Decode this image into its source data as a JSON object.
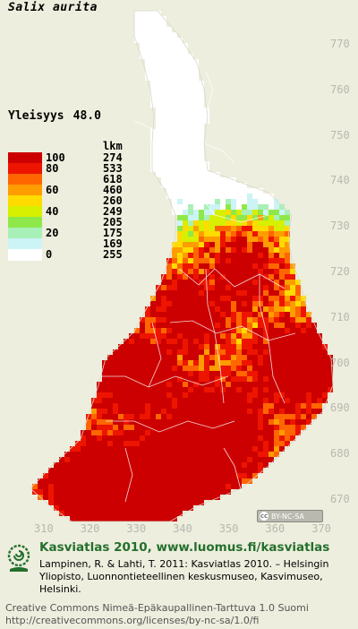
{
  "map": {
    "species": "Salix aurita",
    "frequency_label": "Yleisyys",
    "frequency_value": "48.0",
    "legend": {
      "count_header": "lkm",
      "classes": [
        {
          "value": "100",
          "count": "274",
          "color": "#cc0000"
        },
        {
          "value": "80",
          "count": "533",
          "color": "#ee1500"
        },
        {
          "value": "",
          "count": "618",
          "color": "#ff6600"
        },
        {
          "value": "60",
          "count": "460",
          "color": "#ff9c00"
        },
        {
          "value": "",
          "count": "260",
          "color": "#ffdb00"
        },
        {
          "value": "40",
          "count": "249",
          "color": "#d6f000"
        },
        {
          "value": "",
          "count": "205",
          "color": "#8ee84a"
        },
        {
          "value": "20",
          "count": "175",
          "color": "#a8f0b8"
        },
        {
          "value": "",
          "count": "169",
          "color": "#ccf4f6"
        },
        {
          "value": "0",
          "count": "255",
          "color": "#ffffff"
        }
      ]
    },
    "northing_ticks": [
      "770",
      "760",
      "750",
      "740",
      "730",
      "720",
      "710",
      "700",
      "690",
      "680",
      "670"
    ],
    "easting_ticks": [
      "310",
      "320",
      "330",
      "340",
      "350",
      "360",
      "370"
    ],
    "license_badge": "BY-NC-SA"
  },
  "footer": {
    "title": "Kasviatlas 2010, www.luomus.fi/kasviatlas",
    "citation": "Lampinen, R. & Lahti, T. 2011: Kasviatlas 2010. – Helsingin Yliopisto, Luonnontieteellinen keskusmuseo, Kasvimuseo, Helsinki.",
    "license_line1": "Creative Commons Nimeä-Epäkaupallinen-Tarttuva 1.0 Suomi",
    "license_line2": "http://creativecommons.org/licenses/by-nc-sa/1.0/fi"
  },
  "colors": {
    "background": "#edeedd",
    "title_green": "#246f2d"
  }
}
